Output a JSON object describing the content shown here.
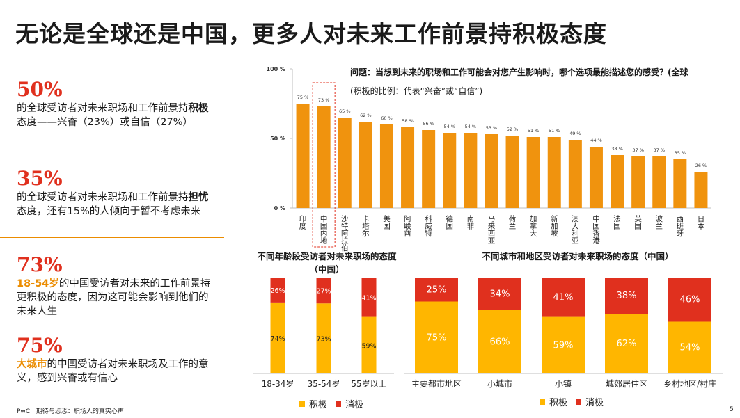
{
  "title": "无论是全球还是中国，更多人对未来工作前景持积极态度",
  "stats": [
    {
      "big": "50%",
      "pre": "的全球受访者对未来职场和工作前景持",
      "em": "积极",
      "post": "态度——兴奋（23%）或自信（27%）"
    },
    {
      "big": "35%",
      "pre": "的全球受访者对未来职场和工作前景持",
      "em": "担忧",
      "post": "态度，还有15%的人倾向于暂不考虑未来"
    },
    {
      "big": "73%",
      "pre": "",
      "em": "18-54岁",
      "post": "的中国受访者对未来的工作前景持更积极的态度，因为这可能会影响到他们的未来人生"
    },
    {
      "big": "75%",
      "pre": "",
      "em": "大城市",
      "post": "的中国受访者对未来职场及工作的意义，感到兴奋或有信心"
    }
  ],
  "footer": "PwC | 期待与忐忑：职场人的真实心声",
  "page_number": "5",
  "question": "问题：当想到未来的职场和工作可能会对您产生影响时，哪个选项最能描述您的感受？(全球",
  "question_note": "(积极的比例：代表“兴奋”或“自信”)",
  "colors": {
    "orange": "#eb8c00",
    "bar_orange": "#f0930e",
    "yellow": "#ffb600",
    "red": "#e0301e",
    "axis": "#bfbfbf"
  },
  "chart_data": [
    {
      "type": "bar",
      "title": "问题：当想到未来的职场和工作可能会对您产生影响时，哪个选项最能描述您的感受？(全球",
      "ylabel": "",
      "ylim": [
        0,
        100
      ],
      "yticks": [
        "0 %",
        "50 %",
        "100 %"
      ],
      "categories": [
        "印度",
        "中国内地",
        "沙特阿拉伯",
        "卡塔尔",
        "美国",
        "阿联酋",
        "科威特",
        "德国",
        "南非",
        "马来西亚",
        "荷兰",
        "加拿大",
        "新加坡",
        "澳大利亚",
        "中国香港",
        "法国",
        "英国",
        "波兰",
        "西班牙",
        "日本"
      ],
      "values": [
        75,
        73,
        65,
        62,
        60,
        58,
        56,
        54,
        54,
        53,
        52,
        51,
        51,
        49,
        44,
        38,
        37,
        37,
        35,
        26
      ],
      "value_labels": [
        "75 %",
        "73 %",
        "65 %",
        "62 %",
        "60 %",
        "58 %",
        "56 %",
        "54 %",
        "54 %",
        "53 %",
        "52 %",
        "51 %",
        "51 %",
        "49 %",
        "44 %",
        "38 %",
        "37 %",
        "37 %",
        "35 %",
        "26 %"
      ],
      "highlight": "中国内地"
    },
    {
      "type": "bar",
      "stacked": true,
      "title": "不同年龄段受访者对未来职场的态度（中国）",
      "categories": [
        "18-34岁",
        "35-54岁",
        "55岁以上"
      ],
      "series": [
        {
          "name": "积极",
          "values": [
            74,
            73,
            59
          ],
          "labels": [
            "74%",
            "73%",
            "59%"
          ]
        },
        {
          "name": "消极",
          "values": [
            26,
            27,
            41
          ],
          "labels": [
            "26%",
            "27%",
            "41%"
          ]
        }
      ],
      "ylim": [
        0,
        100
      ]
    },
    {
      "type": "bar",
      "stacked": true,
      "title": "不同城市和地区受访者对未来职场的态度（中国）",
      "categories": [
        "主要都市地区",
        "小城市",
        "小镇",
        "城郊居住区",
        "乡村地区/村庄"
      ],
      "series": [
        {
          "name": "积极",
          "values": [
            75,
            66,
            59,
            62,
            54
          ],
          "labels": [
            "75%",
            "66%",
            "59%",
            "62%",
            "54%"
          ]
        },
        {
          "name": "消极",
          "values": [
            25,
            34,
            41,
            38,
            46
          ],
          "labels": [
            "25%",
            "34%",
            "41%",
            "38%",
            "46%"
          ]
        }
      ],
      "ylim": [
        0,
        100
      ]
    }
  ],
  "legend": {
    "positive": "积极",
    "negative": "消极"
  }
}
